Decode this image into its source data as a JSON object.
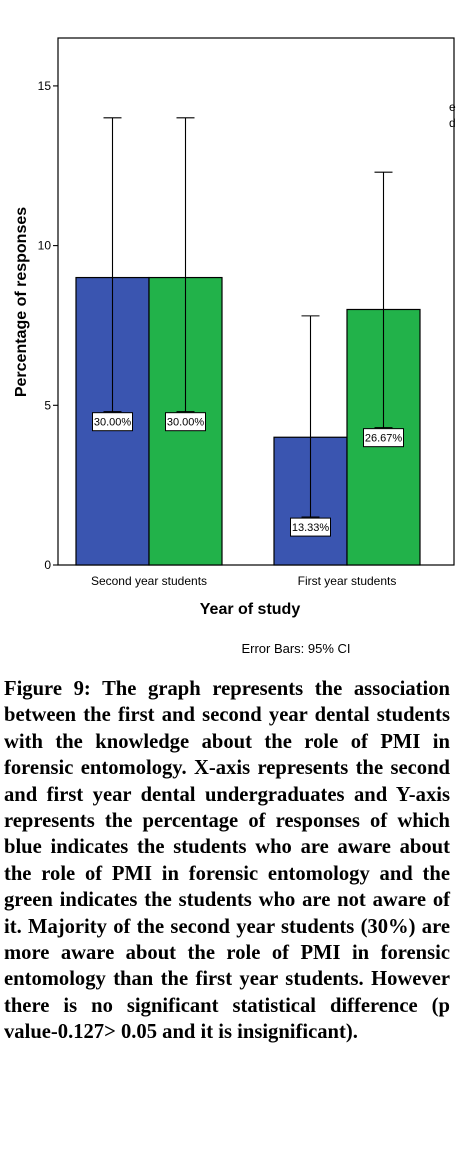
{
  "chart_data": {
    "type": "bar",
    "categories": [
      "Second year students",
      "First year students"
    ],
    "series": [
      {
        "color": "#3a55b0",
        "values": [
          9,
          4
        ],
        "labels": [
          "30.00%",
          "13.33%"
        ],
        "ci": [
          [
            4.8,
            14.0
          ],
          [
            1.5,
            7.8
          ]
        ]
      },
      {
        "color": "#22b24a",
        "values": [
          9,
          8
        ],
        "labels": [
          "30.00%",
          "26.67%"
        ],
        "ci": [
          [
            4.8,
            14.0
          ],
          [
            4.3,
            12.3
          ]
        ]
      }
    ],
    "xlabel": "Year of study",
    "ylabel": "Percentage of responses",
    "ylim": [
      0,
      16.5
    ],
    "yticks": [
      0,
      5,
      10,
      15
    ],
    "yticklabels": [
      "0",
      "5",
      "10",
      "15"
    ],
    "note": "Error Bars: 95% CI",
    "legend_fragments": [
      "e",
      "d"
    ],
    "grid": false
  },
  "caption": {
    "text": "Figure 9: The graph represents the association between the first and second year dental students with the knowledge about the role of PMI in forensic entomology. X-axis represents the second and first year dental undergraduates and Y-axis represents the percentage of responses of which blue indicates the students who are aware about the role of PMI in forensic entomology and the green indicates the students who are not aware of it. Majority of the second year students (30%) are more aware about the role of PMI in forensic entomology than the first year students. However there is no significant statistical difference (p value-0.127> 0.05 and it is insignificant)."
  }
}
